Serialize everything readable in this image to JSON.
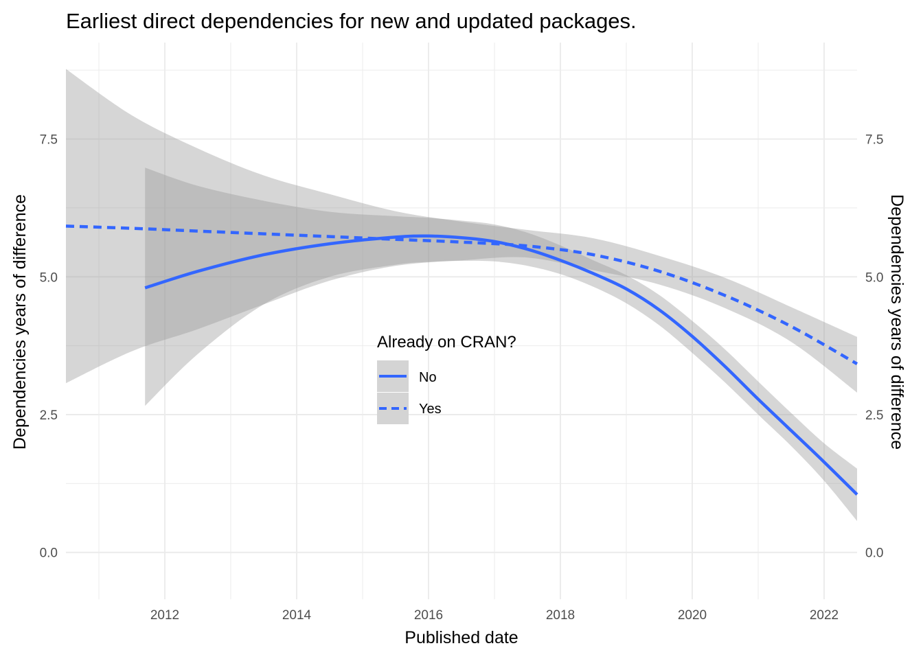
{
  "chart_data": {
    "type": "line",
    "title": "Earliest direct dependencies for new and updated packages.",
    "xlabel": "Published date",
    "ylabel": "Dependencies years of difference",
    "ylabel_right": "Dependencies years of difference",
    "xlim": [
      2010.5,
      2022.5
    ],
    "ylim": [
      -0.85,
      9.25
    ],
    "x_ticks": [
      2012,
      2014,
      2016,
      2018,
      2020,
      2022
    ],
    "x_tick_labels": [
      "2012",
      "2014",
      "2016",
      "2018",
      "2020",
      "2022"
    ],
    "y_ticks": [
      0,
      2.5,
      5,
      7.5
    ],
    "y_tick_labels": [
      "0.0",
      "2.5",
      "5.0",
      "7.5"
    ],
    "grid": true,
    "legend": {
      "title": "Already on CRAN?",
      "placement": "center",
      "entries": [
        "No",
        "Yes"
      ]
    },
    "series": [
      {
        "name": "No",
        "line_style": "solid",
        "color": "#3366ff",
        "x": [
          2011.7,
          2012.5,
          2013.5,
          2014.5,
          2015.5,
          2016.0,
          2016.5,
          2017.0,
          2017.5,
          2018.0,
          2018.5,
          2019.0,
          2019.5,
          2020.0,
          2020.5,
          2021.0,
          2021.5,
          2022.0,
          2022.5
        ],
        "y": [
          4.8,
          5.1,
          5.4,
          5.6,
          5.72,
          5.74,
          5.71,
          5.64,
          5.5,
          5.3,
          5.06,
          4.78,
          4.4,
          3.92,
          3.37,
          2.78,
          2.21,
          1.64,
          1.05
        ],
        "ci_lower": [
          2.66,
          3.6,
          4.5,
          5.0,
          5.22,
          5.27,
          5.29,
          5.28,
          5.2,
          5.05,
          4.82,
          4.52,
          4.12,
          3.62,
          3.08,
          2.5,
          1.93,
          1.3,
          0.57
        ],
        "ci_upper": [
          6.98,
          6.65,
          6.38,
          6.18,
          6.1,
          6.07,
          6.02,
          5.95,
          5.8,
          5.57,
          5.3,
          5.03,
          4.67,
          4.2,
          3.68,
          3.1,
          2.53,
          1.98,
          1.52
        ]
      },
      {
        "name": "Yes",
        "line_style": "dashed",
        "color": "#3366ff",
        "x": [
          2010.5,
          2011.5,
          2012.5,
          2013.5,
          2014.5,
          2015.5,
          2016.5,
          2017.5,
          2018.5,
          2019.5,
          2020.5,
          2021.5,
          2022.5
        ],
        "y": [
          5.92,
          5.88,
          5.83,
          5.78,
          5.73,
          5.68,
          5.63,
          5.56,
          5.4,
          5.1,
          4.66,
          4.1,
          3.42
        ],
        "ci_lower": [
          3.07,
          3.65,
          4.05,
          4.5,
          4.93,
          5.2,
          5.3,
          5.35,
          5.12,
          4.86,
          4.43,
          3.82,
          2.9
        ],
        "ci_upper": [
          8.77,
          7.93,
          7.33,
          6.84,
          6.5,
          6.19,
          6.0,
          5.85,
          5.7,
          5.38,
          4.98,
          4.45,
          3.91
        ]
      }
    ]
  }
}
